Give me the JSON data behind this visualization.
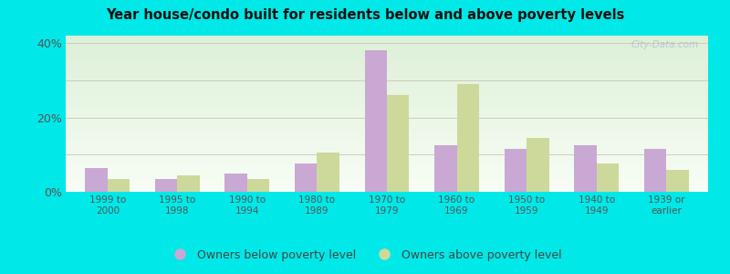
{
  "title": "Year house/condo built for residents below and above poverty levels",
  "categories": [
    "1999 to\n2000",
    "1995 to\n1998",
    "1990 to\n1994",
    "1980 to\n1989",
    "1970 to\n1979",
    "1960 to\n1969",
    "1950 to\n1959",
    "1940 to\n1949",
    "1939 or\nearlier"
  ],
  "below_poverty": [
    6.5,
    3.5,
    5.0,
    7.5,
    38.0,
    12.5,
    11.5,
    12.5,
    11.5
  ],
  "above_poverty": [
    3.5,
    4.5,
    3.5,
    10.5,
    26.0,
    29.0,
    14.5,
    7.5,
    6.0
  ],
  "below_color": "#c9a8d4",
  "above_color": "#cdd99a",
  "ylim": [
    0,
    42
  ],
  "yticks": [
    0,
    20,
    40
  ],
  "ytick_labels": [
    "0%",
    "20%",
    "40%"
  ],
  "grid_ticks": [
    0,
    10,
    20,
    30,
    40
  ],
  "background_top": "#f0f8ee",
  "background_bottom": "#e8f5e0",
  "outer_background": "#00e8e8",
  "legend_below": "Owners below poverty level",
  "legend_above": "Owners above poverty level",
  "watermark": "City-Data.com"
}
